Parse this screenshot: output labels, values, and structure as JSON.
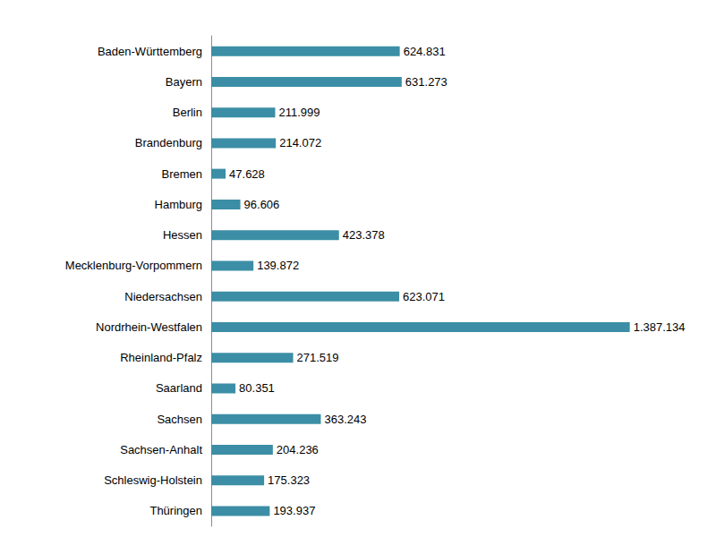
{
  "chart_data": {
    "type": "bar",
    "orientation": "horizontal",
    "categories": [
      "Baden-Württemberg",
      "Bayern",
      "Berlin",
      "Brandenburg",
      "Bremen",
      "Hamburg",
      "Hessen",
      "Mecklenburg-Vorpommern",
      "Niedersachsen",
      "Nordrhein-Westfalen",
      "Rheinland-Pfalz",
      "Saarland",
      "Sachsen",
      "Sachsen-Anhalt",
      "Schleswig-Holstein",
      "Thüringen"
    ],
    "values": [
      624831,
      631273,
      211999,
      214072,
      47628,
      96606,
      423378,
      139872,
      623071,
      1387134,
      271519,
      80351,
      363243,
      204236,
      175323,
      193937
    ],
    "value_labels": [
      "624.831",
      "631.273",
      "211.999",
      "214.072",
      "47.628",
      "96.606",
      "423.378",
      "139.872",
      "623.071",
      "1.387.134",
      "271.519",
      "80.351",
      "363.243",
      "204.236",
      "175.323",
      "193.937"
    ],
    "color": "#3b8ea5",
    "xlim": [
      0,
      1400000
    ],
    "data_labels": true,
    "grid": false,
    "tick_labels": "y"
  }
}
